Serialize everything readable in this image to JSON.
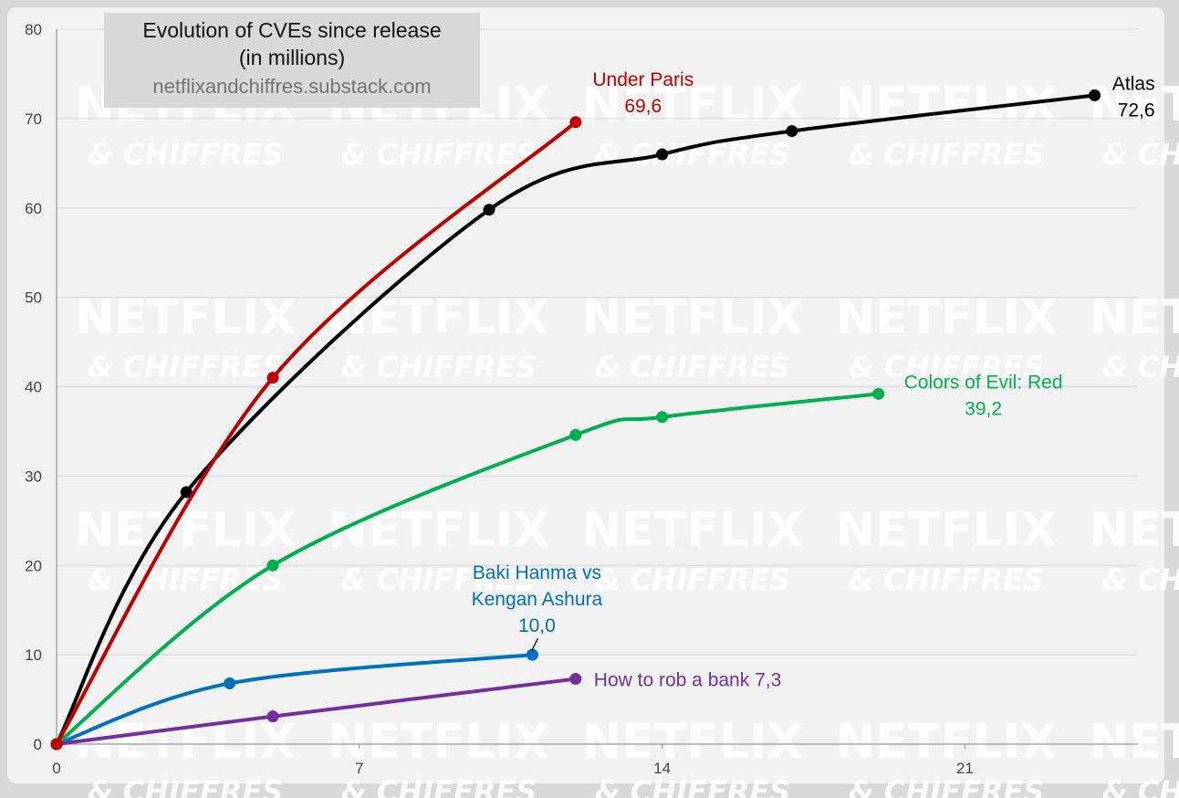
{
  "title": "Evolution of CVEs since release\n(in millions)",
  "source": "netflixandchiffres.substack.com",
  "watermark": {
    "line1": "NETFLIX",
    "line2": "& CHIFFRES"
  },
  "chart_data": {
    "type": "line",
    "title": "Evolution of CVEs since release (in millions)",
    "xlabel": "",
    "ylabel": "",
    "xlim": [
      0,
      25
    ],
    "ylim": [
      0,
      80
    ],
    "xticks": [
      0,
      7,
      14,
      21
    ],
    "yticks": [
      0,
      10,
      20,
      30,
      40,
      50,
      60,
      70,
      80
    ],
    "grid": true,
    "legend": "none",
    "series": [
      {
        "name": "Atlas",
        "end_label": "72,6",
        "color": "#000000",
        "x": [
          0,
          3,
          10,
          14,
          17,
          24
        ],
        "y": [
          0,
          28.2,
          59.8,
          66.0,
          68.6,
          72.6
        ]
      },
      {
        "name": "Under Paris",
        "end_label": "69,6",
        "color": "#c00000",
        "x": [
          0,
          5,
          12
        ],
        "y": [
          0,
          41.0,
          69.6
        ]
      },
      {
        "name": "Colors of Evil: Red",
        "end_label": "39,2",
        "color": "#00b050",
        "x": [
          0,
          5,
          12,
          14,
          19
        ],
        "y": [
          0,
          20.0,
          34.6,
          36.6,
          39.2
        ]
      },
      {
        "name": "Baki Hanma vs\nKengan Ashura",
        "end_label": "10,0",
        "color": "#0070c0",
        "x": [
          0,
          4,
          11
        ],
        "y": [
          0,
          6.8,
          10.0
        ]
      },
      {
        "name": "How to rob a bank",
        "end_label": "7,3",
        "color": "#7030a0",
        "x": [
          0,
          5,
          12
        ],
        "y": [
          0,
          3.1,
          7.3
        ]
      }
    ]
  }
}
